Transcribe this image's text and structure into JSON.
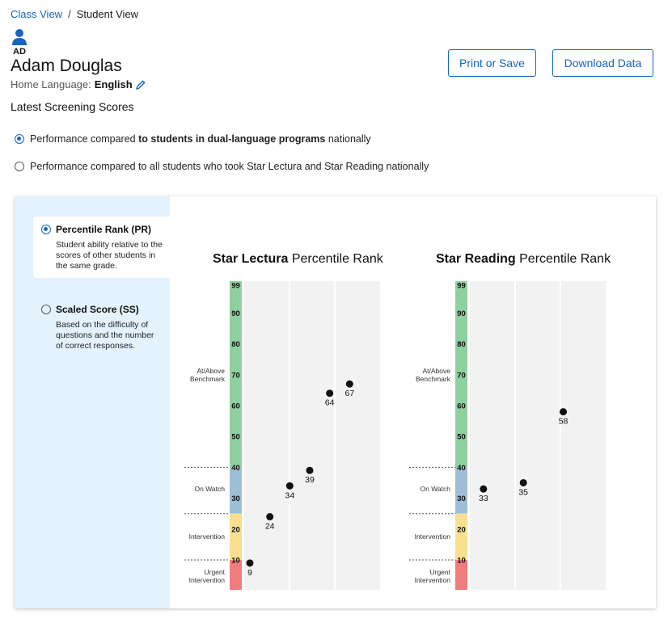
{
  "breadcrumb": {
    "class_view": "Class View",
    "separator": "/",
    "current": "Student View"
  },
  "student": {
    "initials": "AD",
    "name": "Adam Douglas",
    "home_language_label": "Home Language:",
    "home_language": "English"
  },
  "actions": {
    "print": "Print or Save",
    "download": "Download Data"
  },
  "section_title": "Latest Screening Scores",
  "comparison": {
    "option1": {
      "prefix": "Performance compared ",
      "bold": "to students in dual-language programs",
      "suffix": " nationally",
      "selected": true
    },
    "option2": {
      "label": "Performance compared to all students who took Star Lectura and Star Reading nationally",
      "selected": false
    }
  },
  "score_type": [
    {
      "title": "Percentile Rank (PR)",
      "desc": "Student ability relative to the scores of other students in the same grade.",
      "selected": true
    },
    {
      "title": "Scaled Score (SS)",
      "desc": "Based on the difficulty of questions and the number of correct responses.",
      "selected": false
    }
  ],
  "icons": {
    "avatar": "person-icon",
    "edit": "pencil-icon"
  },
  "colors": {
    "accent": "#1565c0",
    "at_above": "#8fd19e",
    "on_watch": "#9ebfd8",
    "intervention": "#f8e08e",
    "urgent": "#f07c7c"
  },
  "chart_data": [
    {
      "type": "scatter",
      "title_bold": "Star Lectura",
      "title_rest": " Percentile Rank",
      "ylim": [
        1,
        99
      ],
      "y_ticks": [
        99,
        90,
        80,
        70,
        60,
        50,
        40,
        30,
        20,
        10
      ],
      "bands": [
        {
          "name": "At/Above Benchmark",
          "from": 40,
          "to": 99,
          "color": "#8fd19e"
        },
        {
          "name": "On Watch",
          "from": 25,
          "to": 40,
          "color": "#9ebfd8"
        },
        {
          "name": "Intervention",
          "from": 10,
          "to": 25,
          "color": "#f8e08e"
        },
        {
          "name": "Urgent Intervention",
          "from": 1,
          "to": 10,
          "color": "#f07c7c"
        }
      ],
      "points": [
        9,
        24,
        34,
        39,
        64,
        67
      ],
      "columns": 3
    },
    {
      "type": "scatter",
      "title_bold": "Star Reading",
      "title_rest": " Percentile Rank",
      "ylim": [
        1,
        99
      ],
      "y_ticks": [
        99,
        90,
        80,
        70,
        60,
        50,
        40,
        30,
        20,
        10
      ],
      "bands": [
        {
          "name": "At/Above Benchmark",
          "from": 40,
          "to": 99,
          "color": "#8fd19e"
        },
        {
          "name": "On Watch",
          "from": 25,
          "to": 40,
          "color": "#9ebfd8"
        },
        {
          "name": "Intervention",
          "from": 10,
          "to": 25,
          "color": "#f8e08e"
        },
        {
          "name": "Urgent Intervention",
          "from": 1,
          "to": 10,
          "color": "#f07c7c"
        }
      ],
      "points": [
        33,
        35,
        58
      ],
      "columns": 3
    }
  ]
}
